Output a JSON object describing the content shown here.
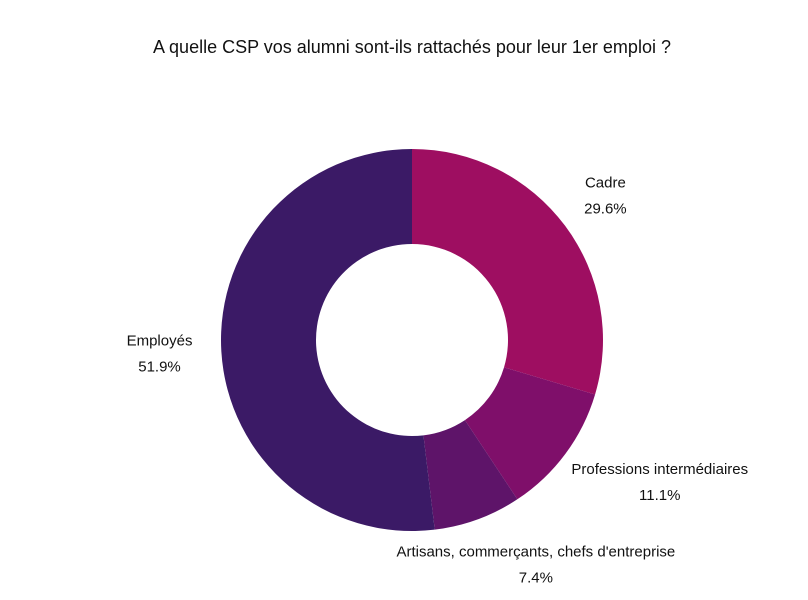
{
  "chart_data": {
    "type": "donut",
    "title": "A quelle CSP vos alumni sont-ils rattachés pour leur 1er emploi ?",
    "categories": [
      "Cadre",
      "Professions intermédiaires",
      "Artisans, commerçants, chefs d'entreprise",
      "Employés"
    ],
    "values": [
      29.6,
      11.1,
      7.4,
      51.9
    ],
    "value_labels": [
      "29.6%",
      "11.1%",
      "7.4%",
      "51.9%"
    ],
    "colors": [
      "#9e0e61",
      "#7f0f6a",
      "#5e1469",
      "#3b1a66"
    ]
  }
}
